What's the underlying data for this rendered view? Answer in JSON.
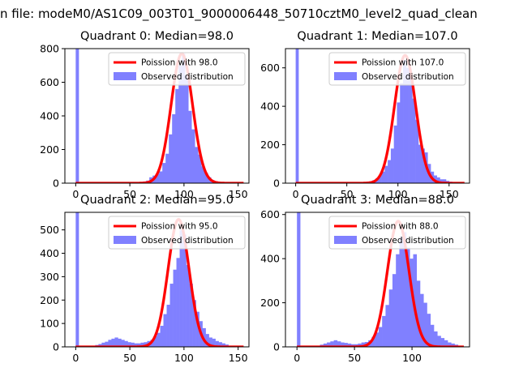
{
  "figure": {
    "suptitle": "n file: modeM0/AS1C09_003T01_9000006448_50710cztM0_level2_quad_clean"
  },
  "colors": {
    "poisson": "#ff0000",
    "observed": "#8080ff",
    "axes": "#000000"
  },
  "chart_data": [
    {
      "type": "bar",
      "title": "Quadrant 0: Median=98.0",
      "median": 98.0,
      "xlim": [
        -10,
        160
      ],
      "ylim": [
        0,
        800
      ],
      "xticks": [
        0,
        50,
        100,
        150
      ],
      "yticks": [
        0,
        200,
        400,
        600,
        800
      ],
      "legend": [
        "Poission with 98.0",
        "Observed distribution"
      ],
      "legend_position": "top-right",
      "spike": {
        "x": 0,
        "value": 800
      },
      "x": [
        50,
        53,
        56,
        59,
        62,
        65,
        68,
        71,
        74,
        77,
        80,
        83,
        86,
        89,
        92,
        95,
        98,
        101,
        104,
        107,
        110,
        113,
        116,
        119,
        122,
        125,
        128,
        131,
        134,
        137,
        140
      ],
      "values": [
        3,
        4,
        5,
        6,
        10,
        15,
        35,
        45,
        55,
        70,
        120,
        175,
        290,
        410,
        560,
        700,
        770,
        640,
        430,
        320,
        215,
        170,
        100,
        60,
        35,
        18,
        12,
        8,
        5,
        3,
        2
      ],
      "poisson_mean": 98.0,
      "poisson_peak": 770
    },
    {
      "type": "bar",
      "title": "Quadrant 1: Median=107.0",
      "median": 107.0,
      "xlim": [
        -10,
        170
      ],
      "ylim": [
        0,
        700
      ],
      "xticks": [
        0,
        50,
        100,
        150
      ],
      "yticks": [
        0,
        200,
        400,
        600
      ],
      "legend": [
        "Poission with 107.0",
        "Observed distribution"
      ],
      "legend_position": "top-right",
      "spike": {
        "x": 0,
        "value": 700
      },
      "x": [
        60,
        63,
        66,
        69,
        72,
        75,
        78,
        81,
        84,
        87,
        90,
        93,
        96,
        99,
        102,
        105,
        108,
        111,
        114,
        117,
        120,
        123,
        126,
        129,
        132,
        135,
        138,
        141,
        144,
        147,
        150
      ],
      "values": [
        3,
        4,
        6,
        8,
        10,
        15,
        25,
        40,
        60,
        90,
        120,
        180,
        300,
        420,
        520,
        640,
        600,
        560,
        440,
        330,
        200,
        180,
        160,
        100,
        60,
        40,
        30,
        20,
        20,
        12,
        8
      ],
      "poisson_mean": 107.0,
      "poisson_peak": 665
    },
    {
      "type": "bar",
      "title": "Quadrant 2: Median=95.0",
      "median": 95.0,
      "xlim": [
        -10,
        160
      ],
      "ylim": [
        0,
        575
      ],
      "xticks": [
        0,
        50,
        100,
        150
      ],
      "yticks": [
        0,
        100,
        200,
        300,
        400,
        500
      ],
      "legend": [
        "Poission with 95.0",
        "Observed distribution"
      ],
      "legend_position": "top-right",
      "spike": {
        "x": 0,
        "value": 575
      },
      "x": [
        18,
        21,
        24,
        27,
        30,
        33,
        36,
        39,
        42,
        45,
        48,
        51,
        54,
        57,
        60,
        63,
        66,
        69,
        72,
        75,
        78,
        81,
        84,
        87,
        90,
        93,
        96,
        99,
        102,
        105,
        108,
        111,
        114,
        117,
        120,
        123,
        126,
        129,
        132,
        135,
        138
      ],
      "values": [
        8,
        12,
        18,
        22,
        30,
        35,
        40,
        35,
        30,
        25,
        20,
        18,
        15,
        15,
        18,
        20,
        25,
        30,
        45,
        60,
        90,
        140,
        180,
        270,
        330,
        380,
        500,
        480,
        350,
        270,
        200,
        150,
        110,
        80,
        55,
        40,
        35,
        25,
        20,
        15,
        10
      ],
      "poisson_mean": 95.0,
      "poisson_peak": 545
    },
    {
      "type": "bar",
      "title": "Quadrant 3: Median=88.0",
      "median": 88.0,
      "xlim": [
        -10,
        150
      ],
      "ylim": [
        0,
        610
      ],
      "xticks": [
        0,
        50,
        100
      ],
      "yticks": [
        0,
        200,
        400,
        600
      ],
      "legend": [
        "Poission with 88.0",
        "Observed distribution"
      ],
      "legend_position": "top-right",
      "spike": {
        "x": 0,
        "value": 610
      },
      "x": [
        20,
        23,
        26,
        29,
        32,
        35,
        38,
        41,
        44,
        47,
        50,
        53,
        56,
        59,
        62,
        65,
        68,
        71,
        74,
        77,
        80,
        83,
        86,
        89,
        92,
        95,
        98,
        101,
        104,
        107,
        110,
        113,
        116,
        119,
        122,
        125,
        128,
        131,
        134,
        137,
        140
      ],
      "values": [
        10,
        15,
        20,
        25,
        30,
        25,
        20,
        18,
        15,
        12,
        12,
        15,
        20,
        22,
        30,
        45,
        65,
        90,
        140,
        190,
        260,
        330,
        420,
        500,
        520,
        450,
        400,
        420,
        300,
        240,
        200,
        150,
        100,
        70,
        50,
        40,
        30,
        20,
        15,
        10,
        5
      ],
      "poisson_mean": 88.0,
      "poisson_peak": 570
    }
  ]
}
